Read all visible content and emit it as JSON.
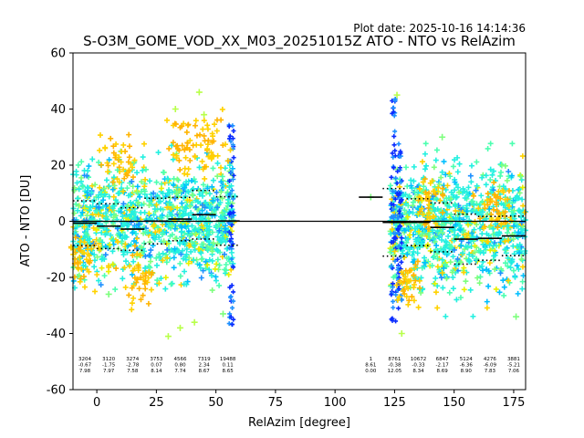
{
  "chart_data": {
    "type": "scatter",
    "plot_date": "Plot date: 2025-10-16 14:14:36",
    "title": "S-O3M_GOME_VOD_XX_M03_20251015Z ATO - NTO vs RelAzim",
    "xlabel": "RelAzim [degree]",
    "ylabel": "ATO - NTO [DU]",
    "xlim": [
      -10,
      180
    ],
    "ylim": [
      -60,
      60
    ],
    "x_ticks": [
      0,
      25,
      50,
      75,
      100,
      125,
      150,
      175
    ],
    "y_ticks": [
      -60,
      -40,
      -20,
      0,
      20,
      40,
      60
    ],
    "zero_line": 0,
    "point_colors": [
      "#1e90ff",
      "#00bfff",
      "#24f0e0",
      "#4cffb0",
      "#7dff7d",
      "#b8ff4a",
      "#e8f000",
      "#ffd200",
      "#ffb400",
      "#0a2cff"
    ],
    "clusters": [
      {
        "x_range": [
          -10,
          58
        ],
        "y_center": 0,
        "y_spread": 20
      },
      {
        "x_range": [
          123,
          180
        ],
        "y_center": -2,
        "y_spread": 22
      }
    ],
    "bins": [
      {
        "x_start": -10,
        "x_end": 0,
        "count": "3204",
        "mean": "-0.67",
        "std": "7.98"
      },
      {
        "x_start": 0,
        "x_end": 10,
        "count": "3120",
        "mean": "-1.75",
        "std": "7.97"
      },
      {
        "x_start": 10,
        "x_end": 20,
        "count": "3274",
        "mean": "-2.78",
        "std": "7.58"
      },
      {
        "x_start": 20,
        "x_end": 30,
        "count": "3753",
        "mean": "0.07",
        "std": "8.14"
      },
      {
        "x_start": 30,
        "x_end": 40,
        "count": "4566",
        "mean": "0.80",
        "std": "7.74"
      },
      {
        "x_start": 40,
        "x_end": 50,
        "count": "7319",
        "mean": "2.34",
        "std": "8.67"
      },
      {
        "x_start": 50,
        "x_end": 60,
        "count": "19488",
        "mean": "0.11",
        "std": "8.65"
      },
      {
        "x_start": 110,
        "x_end": 120,
        "count": "1",
        "mean": "8.61",
        "std": "0.00"
      },
      {
        "x_start": 120,
        "x_end": 130,
        "count": "8761",
        "mean": "-0.38",
        "std": "12.05"
      },
      {
        "x_start": 130,
        "x_end": 140,
        "count": "10672",
        "mean": "-0.33",
        "std": "8.34"
      },
      {
        "x_start": 140,
        "x_end": 150,
        "count": "6847",
        "mean": "-2.17",
        "std": "8.69"
      },
      {
        "x_start": 150,
        "x_end": 160,
        "count": "5124",
        "mean": "-6.36",
        "std": "8.90"
      },
      {
        "x_start": 160,
        "x_end": 170,
        "count": "4276",
        "mean": "-6.09",
        "std": "7.83"
      },
      {
        "x_start": 170,
        "x_end": 180,
        "count": "3881",
        "mean": "-5.21",
        "std": "7.06"
      }
    ],
    "outlier_points": [
      {
        "x": 115,
        "y": 8.6
      },
      {
        "x": 43,
        "y": 46
      },
      {
        "x": 33,
        "y": 40
      },
      {
        "x": 30,
        "y": -41
      },
      {
        "x": 41,
        "y": -36
      },
      {
        "x": 45,
        "y": 38
      },
      {
        "x": 126,
        "y": 45
      },
      {
        "x": 128,
        "y": -40
      },
      {
        "x": 170,
        "y": 20
      },
      {
        "x": 145,
        "y": 30
      },
      {
        "x": 178,
        "y": 16
      },
      {
        "x": 176,
        "y": -34
      },
      {
        "x": 35,
        "y": -38
      },
      {
        "x": 53,
        "y": -33
      },
      {
        "x": 5,
        "y": -26
      }
    ]
  }
}
